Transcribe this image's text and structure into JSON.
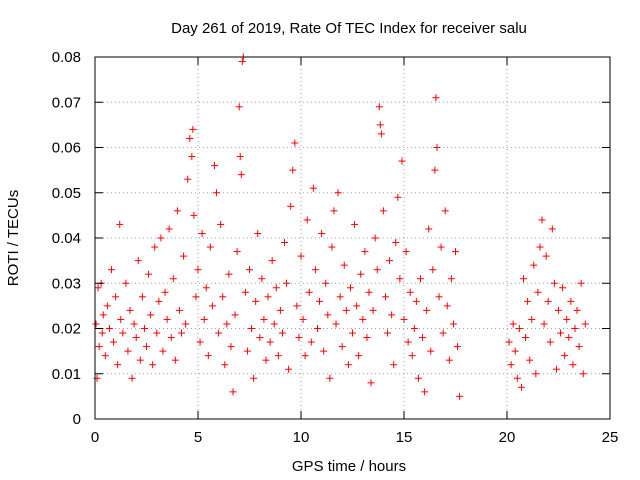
{
  "chart_data": {
    "type": "scatter",
    "title": "Day 261 of 2019, Rate Of TEC Index for receiver salu",
    "xlabel": "GPS time / hours",
    "ylabel": "ROTI / TECUs",
    "xlim": [
      0,
      25
    ],
    "ylim": [
      0,
      0.08
    ],
    "xticks": [
      0,
      5,
      10,
      15,
      20,
      25
    ],
    "xtick_labels": [
      "0",
      "5",
      "10",
      "15",
      "20",
      "25"
    ],
    "yticks": [
      0,
      0.01,
      0.02,
      0.03,
      0.04,
      0.05,
      0.06,
      0.07,
      0.08
    ],
    "ytick_labels": [
      "0",
      "0.01",
      "0.02",
      "0.03",
      "0.04",
      "0.05",
      "0.06",
      "0.07",
      "0.08"
    ],
    "grid": true,
    "marker": "+",
    "color": "#ff0000",
    "series": [
      {
        "name": "ROTI",
        "points": [
          [
            0.05,
            0.021
          ],
          [
            0.1,
            0.009
          ],
          [
            0.15,
            0.029
          ],
          [
            0.2,
            0.016
          ],
          [
            0.3,
            0.03
          ],
          [
            0.35,
            0.019
          ],
          [
            0.4,
            0.023
          ],
          [
            0.5,
            0.014
          ],
          [
            0.6,
            0.025
          ],
          [
            0.7,
            0.02
          ],
          [
            0.8,
            0.033
          ],
          [
            0.9,
            0.017
          ],
          [
            1.0,
            0.027
          ],
          [
            1.1,
            0.012
          ],
          [
            1.2,
            0.043
          ],
          [
            1.25,
            0.022
          ],
          [
            1.35,
            0.019
          ],
          [
            1.5,
            0.03
          ],
          [
            1.6,
            0.015
          ],
          [
            1.7,
            0.024
          ],
          [
            1.8,
            0.009
          ],
          [
            1.9,
            0.021
          ],
          [
            2.0,
            0.018
          ],
          [
            2.1,
            0.035
          ],
          [
            2.2,
            0.013
          ],
          [
            2.3,
            0.027
          ],
          [
            2.4,
            0.02
          ],
          [
            2.5,
            0.016
          ],
          [
            2.6,
            0.032
          ],
          [
            2.7,
            0.023
          ],
          [
            2.8,
            0.012
          ],
          [
            2.9,
            0.038
          ],
          [
            3.0,
            0.019
          ],
          [
            3.1,
            0.026
          ],
          [
            3.2,
            0.04
          ],
          [
            3.3,
            0.015
          ],
          [
            3.4,
            0.028
          ],
          [
            3.5,
            0.022
          ],
          [
            3.6,
            0.042
          ],
          [
            3.7,
            0.018
          ],
          [
            3.8,
            0.031
          ],
          [
            3.9,
            0.013
          ],
          [
            4.0,
            0.046
          ],
          [
            4.1,
            0.024
          ],
          [
            4.2,
            0.019
          ],
          [
            4.3,
            0.036
          ],
          [
            4.4,
            0.021
          ],
          [
            4.5,
            0.053
          ],
          [
            4.6,
            0.062
          ],
          [
            4.7,
            0.058
          ],
          [
            4.75,
            0.064
          ],
          [
            4.8,
            0.045
          ],
          [
            4.9,
            0.027
          ],
          [
            5.0,
            0.033
          ],
          [
            5.1,
            0.017
          ],
          [
            5.2,
            0.041
          ],
          [
            5.3,
            0.022
          ],
          [
            5.4,
            0.029
          ],
          [
            5.5,
            0.014
          ],
          [
            5.6,
            0.038
          ],
          [
            5.7,
            0.025
          ],
          [
            5.8,
            0.056
          ],
          [
            5.9,
            0.05
          ],
          [
            6.0,
            0.019
          ],
          [
            6.1,
            0.043
          ],
          [
            6.2,
            0.027
          ],
          [
            6.3,
            0.012
          ],
          [
            6.4,
            0.021
          ],
          [
            6.5,
            0.032
          ],
          [
            6.6,
            0.016
          ],
          [
            6.7,
            0.006
          ],
          [
            6.8,
            0.023
          ],
          [
            6.9,
            0.037
          ],
          [
            7.0,
            0.069
          ],
          [
            7.05,
            0.058
          ],
          [
            7.1,
            0.054
          ],
          [
            7.15,
            0.079
          ],
          [
            7.2,
            0.08
          ],
          [
            7.3,
            0.028
          ],
          [
            7.4,
            0.015
          ],
          [
            7.5,
            0.033
          ],
          [
            7.6,
            0.02
          ],
          [
            7.7,
            0.009
          ],
          [
            7.8,
            0.026
          ],
          [
            7.9,
            0.041
          ],
          [
            8.0,
            0.018
          ],
          [
            8.1,
            0.031
          ],
          [
            8.2,
            0.022
          ],
          [
            8.3,
            0.013
          ],
          [
            8.4,
            0.027
          ],
          [
            8.5,
            0.017
          ],
          [
            8.6,
            0.035
          ],
          [
            8.7,
            0.021
          ],
          [
            8.8,
            0.029
          ],
          [
            8.9,
            0.014
          ],
          [
            9.0,
            0.024
          ],
          [
            9.1,
            0.019
          ],
          [
            9.2,
            0.039
          ],
          [
            9.3,
            0.03
          ],
          [
            9.4,
            0.011
          ],
          [
            9.5,
            0.047
          ],
          [
            9.6,
            0.055
          ],
          [
            9.7,
            0.061
          ],
          [
            9.8,
            0.025
          ],
          [
            9.9,
            0.018
          ],
          [
            10.0,
            0.036
          ],
          [
            10.1,
            0.022
          ],
          [
            10.2,
            0.014
          ],
          [
            10.3,
            0.044
          ],
          [
            10.4,
            0.028
          ],
          [
            10.5,
            0.017
          ],
          [
            10.6,
            0.051
          ],
          [
            10.7,
            0.033
          ],
          [
            10.8,
            0.02
          ],
          [
            10.9,
            0.026
          ],
          [
            11.0,
            0.041
          ],
          [
            11.1,
            0.015
          ],
          [
            11.2,
            0.03
          ],
          [
            11.3,
            0.023
          ],
          [
            11.4,
            0.009
          ],
          [
            11.5,
            0.038
          ],
          [
            11.6,
            0.046
          ],
          [
            11.7,
            0.021
          ],
          [
            11.8,
            0.05
          ],
          [
            11.9,
            0.027
          ],
          [
            12.0,
            0.016
          ],
          [
            12.1,
            0.034
          ],
          [
            12.2,
            0.024
          ],
          [
            12.3,
            0.012
          ],
          [
            12.4,
            0.029
          ],
          [
            12.5,
            0.019
          ],
          [
            12.6,
            0.043
          ],
          [
            12.7,
            0.025
          ],
          [
            12.8,
            0.014
          ],
          [
            12.9,
            0.032
          ],
          [
            13.0,
            0.022
          ],
          [
            13.1,
            0.037
          ],
          [
            13.2,
            0.018
          ],
          [
            13.3,
            0.028
          ],
          [
            13.4,
            0.008
          ],
          [
            13.5,
            0.024
          ],
          [
            13.6,
            0.04
          ],
          [
            13.7,
            0.033
          ],
          [
            13.8,
            0.069
          ],
          [
            13.85,
            0.065
          ],
          [
            13.9,
            0.063
          ],
          [
            14.0,
            0.046
          ],
          [
            14.1,
            0.027
          ],
          [
            14.2,
            0.019
          ],
          [
            14.3,
            0.035
          ],
          [
            14.4,
            0.023
          ],
          [
            14.5,
            0.012
          ],
          [
            14.6,
            0.039
          ],
          [
            14.7,
            0.049
          ],
          [
            14.8,
            0.031
          ],
          [
            14.9,
            0.057
          ],
          [
            15.0,
            0.022
          ],
          [
            15.1,
            0.037
          ],
          [
            15.2,
            0.017
          ],
          [
            15.3,
            0.028
          ],
          [
            15.4,
            0.014
          ],
          [
            15.5,
            0.02
          ],
          [
            15.6,
            0.026
          ],
          [
            15.7,
            0.009
          ],
          [
            15.8,
            0.031
          ],
          [
            15.9,
            0.018
          ],
          [
            16.0,
            0.006
          ],
          [
            16.1,
            0.024
          ],
          [
            16.2,
            0.042
          ],
          [
            16.3,
            0.015
          ],
          [
            16.4,
            0.033
          ],
          [
            16.5,
            0.055
          ],
          [
            16.55,
            0.071
          ],
          [
            16.6,
            0.06
          ],
          [
            16.7,
            0.027
          ],
          [
            16.8,
            0.038
          ],
          [
            16.9,
            0.019
          ],
          [
            17.0,
            0.046
          ],
          [
            17.1,
            0.025
          ],
          [
            17.2,
            0.013
          ],
          [
            17.3,
            0.031
          ],
          [
            17.4,
            0.021
          ],
          [
            17.5,
            0.037
          ],
          [
            17.6,
            0.016
          ],
          [
            17.7,
            0.005
          ],
          [
            20.1,
            0.017
          ],
          [
            20.2,
            0.012
          ],
          [
            20.3,
            0.021
          ],
          [
            20.4,
            0.015
          ],
          [
            20.5,
            0.009
          ],
          [
            20.6,
            0.02
          ],
          [
            20.7,
            0.007
          ],
          [
            20.8,
            0.031
          ],
          [
            20.9,
            0.018
          ],
          [
            21.0,
            0.026
          ],
          [
            21.1,
            0.013
          ],
          [
            21.2,
            0.022
          ],
          [
            21.3,
            0.034
          ],
          [
            21.4,
            0.01
          ],
          [
            21.5,
            0.028
          ],
          [
            21.6,
            0.038
          ],
          [
            21.7,
            0.044
          ],
          [
            21.8,
            0.021
          ],
          [
            21.9,
            0.036
          ],
          [
            22.0,
            0.026
          ],
          [
            22.1,
            0.017
          ],
          [
            22.2,
            0.042
          ],
          [
            22.3,
            0.03
          ],
          [
            22.4,
            0.011
          ],
          [
            22.5,
            0.024
          ],
          [
            22.6,
            0.019
          ],
          [
            22.7,
            0.029
          ],
          [
            22.8,
            0.014
          ],
          [
            22.9,
            0.022
          ],
          [
            23.0,
            0.018
          ],
          [
            23.1,
            0.026
          ],
          [
            23.2,
            0.012
          ],
          [
            23.3,
            0.02
          ],
          [
            23.4,
            0.024
          ],
          [
            23.5,
            0.016
          ],
          [
            23.6,
            0.03
          ],
          [
            23.7,
            0.01
          ],
          [
            23.8,
            0.021
          ]
        ]
      }
    ]
  }
}
